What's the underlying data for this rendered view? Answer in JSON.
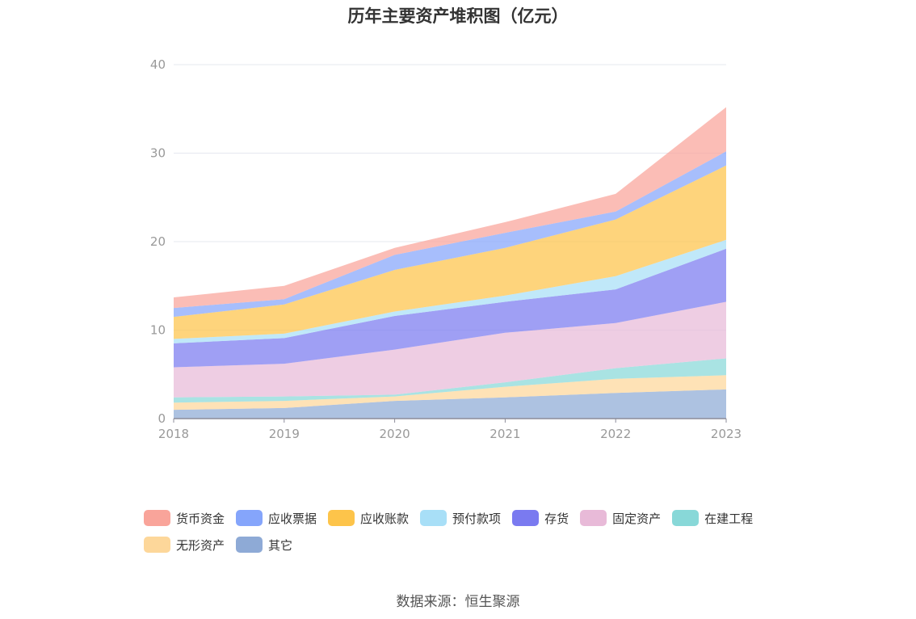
{
  "chart_data": {
    "type": "area",
    "stacked": true,
    "title": "历年主要资产堆积图（亿元）",
    "x": [
      "2018",
      "2019",
      "2020",
      "2021",
      "2022",
      "2023"
    ],
    "ylim": [
      0,
      40
    ],
    "yticks": [
      0,
      10,
      20,
      30,
      40
    ],
    "grid": true,
    "legend_position": "bottom",
    "series": [
      {
        "name": "其它",
        "color": "#8eaad6",
        "values": [
          1.0,
          1.2,
          2.0,
          2.4,
          2.9,
          3.3
        ]
      },
      {
        "name": "无形资产",
        "color": "#fdd79a",
        "values": [
          0.8,
          0.8,
          0.5,
          1.2,
          1.6,
          1.6
        ]
      },
      {
        "name": "在建工程",
        "color": "#88d8d8",
        "values": [
          0.6,
          0.5,
          0.2,
          0.5,
          1.2,
          1.9
        ]
      },
      {
        "name": "固定资产",
        "color": "#e8bad8",
        "values": [
          3.4,
          3.7,
          5.1,
          5.6,
          5.1,
          6.4
        ]
      },
      {
        "name": "存货",
        "color": "#7a7af0",
        "values": [
          2.7,
          2.9,
          3.8,
          3.5,
          3.8,
          6.0
        ]
      },
      {
        "name": "预付款项",
        "color": "#a8dff7",
        "values": [
          0.5,
          0.5,
          0.5,
          0.7,
          1.5,
          1.0
        ]
      },
      {
        "name": "应收账款",
        "color": "#fdc44a",
        "values": [
          2.5,
          3.3,
          4.7,
          5.4,
          6.4,
          8.4
        ]
      },
      {
        "name": "应收票据",
        "color": "#85a5fb",
        "values": [
          1.0,
          0.6,
          1.7,
          1.7,
          0.9,
          1.6
        ]
      },
      {
        "name": "货币资金",
        "color": "#f9a49a",
        "values": [
          1.2,
          1.5,
          0.8,
          1.2,
          2.0,
          5.0
        ]
      }
    ]
  },
  "legend": [
    {
      "label": "货币资金",
      "color": "#f9a49a"
    },
    {
      "label": "应收票据",
      "color": "#85a5fb"
    },
    {
      "label": "应收账款",
      "color": "#fdc44a"
    },
    {
      "label": "预付款项",
      "color": "#a8dff7"
    },
    {
      "label": "存货",
      "color": "#7a7af0"
    },
    {
      "label": "固定资产",
      "color": "#e8bad8"
    },
    {
      "label": "在建工程",
      "color": "#88d8d8"
    },
    {
      "label": "无形资产",
      "color": "#fdd79a"
    },
    {
      "label": "其它",
      "color": "#8eaad6"
    }
  ],
  "source": "数据来源：恒生聚源"
}
